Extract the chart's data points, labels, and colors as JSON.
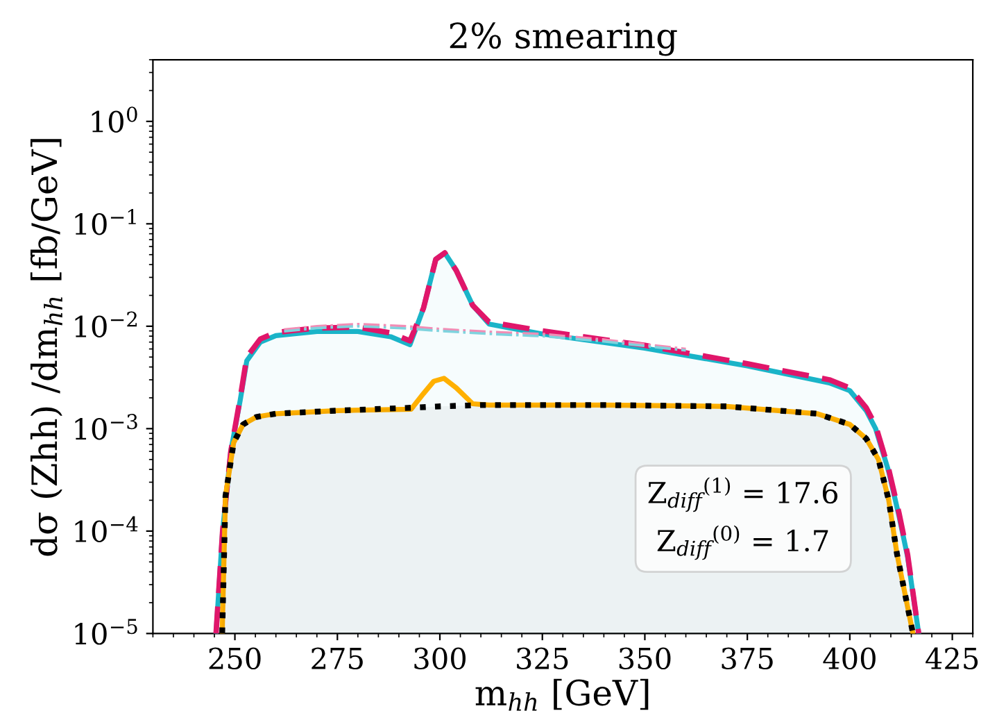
{
  "chart_data": {
    "type": "line",
    "title": "2% smearing",
    "xlabel": "m$_{hh}$ [GeV]",
    "ylabel": "dσ (Zhh) /dm$_{hh}$ [fb/GeV]",
    "log": "y",
    "grid": false,
    "legend": false,
    "xlim": [
      230,
      430
    ],
    "xticks": [
      250,
      275,
      300,
      325,
      350,
      375,
      400,
      425
    ],
    "ylim": [
      1e-05,
      4
    ],
    "yticks": [
      {
        "value": 1e-05,
        "label": "10$^{−5}$"
      },
      {
        "value": 0.0001,
        "label": "10$^{−4}$"
      },
      {
        "value": 0.001,
        "label": "10$^{−3}$"
      },
      {
        "value": 0.01,
        "label": "10$^{−2}$"
      },
      {
        "value": 0.1,
        "label": "10$^{−1}$"
      },
      {
        "value": 1,
        "label": "10$^{0}$"
      }
    ],
    "annotations": [
      "Z$_{diff}$$^{(1)}$ = 17.6",
      "Z$_{diff}$$^{(0)}$ = 1.7"
    ],
    "series": [
      {
        "type": "area",
        "color": "#1ab4c8",
        "line_style": "solid",
        "x": [
          245.4,
          247,
          249,
          251.3,
          252.9,
          256.2,
          260,
          270,
          280,
          288,
          292.7,
          296,
          299,
          301.2,
          304,
          308,
          312,
          325,
          350,
          375,
          395,
          400,
          404,
          406.3,
          409.5,
          412,
          414.1,
          416.8
        ],
        "values": [
          1e-05,
          0.0001,
          0.0006,
          0.0019,
          0.0046,
          0.007,
          0.0081,
          0.0089,
          0.0089,
          0.0079,
          0.0066,
          0.015,
          0.045,
          0.052,
          0.035,
          0.016,
          0.0105,
          0.0084,
          0.0061,
          0.0041,
          0.0028,
          0.00235,
          0.0015,
          0.001,
          0.00038,
          0.00014,
          5.6e-05,
          1e-05
        ]
      },
      {
        "color": "#e0166a",
        "line_style": "dashed",
        "x": [
          245.4,
          247,
          249,
          251.3,
          252.9,
          256.2,
          260,
          270,
          280,
          288,
          292.7,
          296,
          299,
          301.2,
          304,
          308,
          312,
          325,
          350,
          375,
          395,
          400,
          404,
          406.3,
          409.5,
          412,
          414.1,
          416.8
        ],
        "values": [
          1e-05,
          0.0001,
          0.0006,
          0.002,
          0.005,
          0.0075,
          0.0087,
          0.0096,
          0.0098,
          0.0086,
          0.0072,
          0.015,
          0.045,
          0.052,
          0.035,
          0.016,
          0.011,
          0.009,
          0.0065,
          0.0043,
          0.003,
          0.0025,
          0.0016,
          0.00107,
          0.0004,
          0.00015,
          5.9e-05,
          1e-05
        ]
      },
      {
        "color": "#f28db5",
        "line_style": "dashdot",
        "x": [
          262,
          270,
          280,
          292,
          300,
          308,
          315,
          325,
          340,
          360
        ],
        "values": [
          0.0093,
          0.01,
          0.0105,
          0.01,
          0.0094,
          0.009,
          0.0087,
          0.0084,
          0.0074,
          0.006
        ]
      },
      {
        "color": "#7fd3de",
        "line_style": "dashdot",
        "x": [
          262,
          270,
          280,
          292,
          300,
          308,
          315,
          325,
          340,
          360
        ],
        "values": [
          0.0089,
          0.0096,
          0.01,
          0.0095,
          0.009,
          0.0086,
          0.0083,
          0.008,
          0.0071,
          0.0058
        ]
      },
      {
        "color": "#ffb000",
        "line_style": "solid",
        "x": [
          246.9,
          247.7,
          249.7,
          252,
          255.2,
          260,
          275,
          293,
          296,
          298.5,
          301,
          304,
          308,
          312,
          340,
          370,
          392,
          400,
          404,
          407,
          409.5,
          411.5,
          415.4
        ],
        "values": [
          1e-05,
          0.00022,
          0.00073,
          0.0011,
          0.0013,
          0.0014,
          0.0015,
          0.00155,
          0.0022,
          0.0029,
          0.0031,
          0.0025,
          0.00175,
          0.0017,
          0.0017,
          0.00165,
          0.0014,
          0.0011,
          0.0008,
          0.0005,
          0.0002,
          6e-05,
          1e-05
        ]
      },
      {
        "type": "area",
        "color": "#000000",
        "line_style": "dotted",
        "x": [
          246.9,
          247.7,
          249.7,
          252,
          255.2,
          260,
          275,
          293,
          300,
          310,
          340,
          370,
          392,
          400,
          404,
          407,
          409.5,
          411.5,
          415.4
        ],
        "values": [
          1e-05,
          0.00022,
          0.00073,
          0.0011,
          0.0013,
          0.0014,
          0.0015,
          0.0016,
          0.00165,
          0.0017,
          0.0017,
          0.00165,
          0.0014,
          0.0011,
          0.0008,
          0.0005,
          0.0002,
          6e-05,
          1e-05
        ]
      }
    ]
  }
}
